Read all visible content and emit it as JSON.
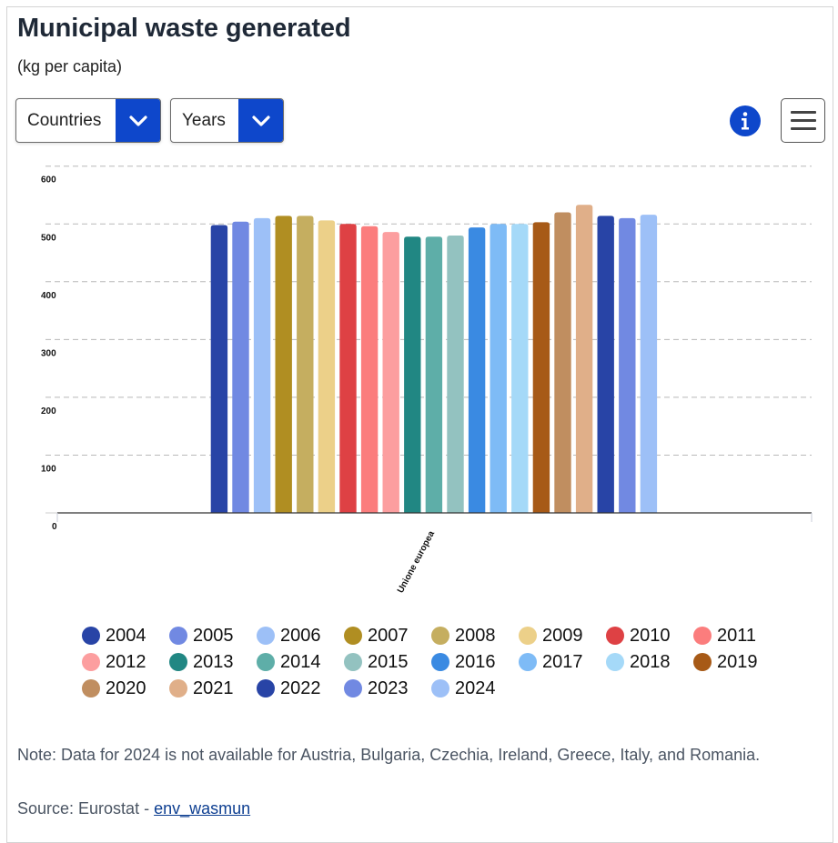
{
  "header": {
    "title": "Municipal waste generated",
    "subtitle": "(kg per capita)"
  },
  "controls": {
    "countries_label": "Countries",
    "years_label": "Years",
    "info_icon": "info-circle-icon",
    "menu_icon": "hamburger-menu-icon",
    "accent_color": "#0e47cb"
  },
  "chart_data": {
    "type": "bar",
    "title": "Municipal waste generated",
    "subtitle": "(kg per capita)",
    "xlabel": "",
    "ylabel": "",
    "categories": [
      "Unione europea"
    ],
    "ylim": [
      0,
      600
    ],
    "yticks": [
      0,
      100,
      200,
      300,
      400,
      500,
      600
    ],
    "ytick_labels": [
      "0",
      "100",
      "200",
      "300",
      "400",
      "500",
      "600"
    ],
    "grid": true,
    "legend_position": "bottom",
    "series": [
      {
        "name": "2004",
        "color": "#2844a6",
        "values": [
          498
        ]
      },
      {
        "name": "2005",
        "color": "#7189e2",
        "values": [
          504
        ]
      },
      {
        "name": "2006",
        "color": "#9dc0f7",
        "values": [
          510
        ]
      },
      {
        "name": "2007",
        "color": "#b08e22",
        "values": [
          514
        ]
      },
      {
        "name": "2008",
        "color": "#c5ae60",
        "values": [
          514
        ]
      },
      {
        "name": "2009",
        "color": "#ecd089",
        "values": [
          506
        ]
      },
      {
        "name": "2010",
        "color": "#de4144",
        "values": [
          500
        ]
      },
      {
        "name": "2011",
        "color": "#fb7d7d",
        "values": [
          496
        ]
      },
      {
        "name": "2012",
        "color": "#fc9e9f",
        "values": [
          486
        ]
      },
      {
        "name": "2013",
        "color": "#218783",
        "values": [
          478
        ]
      },
      {
        "name": "2014",
        "color": "#5eaea8",
        "values": [
          478
        ]
      },
      {
        "name": "2015",
        "color": "#93c2c0",
        "values": [
          480
        ]
      },
      {
        "name": "2016",
        "color": "#3a8ae2",
        "values": [
          494
        ]
      },
      {
        "name": "2017",
        "color": "#7ebbf6",
        "values": [
          500
        ]
      },
      {
        "name": "2018",
        "color": "#a5d9f8",
        "values": [
          500
        ]
      },
      {
        "name": "2019",
        "color": "#a75a17",
        "values": [
          503
        ]
      },
      {
        "name": "2020",
        "color": "#c08e60",
        "values": [
          520
        ]
      },
      {
        "name": "2021",
        "color": "#e0af89",
        "values": [
          533
        ]
      },
      {
        "name": "2022",
        "color": "#2844a6",
        "values": [
          514
        ]
      },
      {
        "name": "2023",
        "color": "#7189e2",
        "values": [
          510
        ]
      },
      {
        "name": "2024",
        "color": "#9dc0f7",
        "values": [
          516
        ]
      }
    ]
  },
  "footer": {
    "note": "Note: Data for 2024 is not available for Austria, Bulgaria, Czechia, Ireland, Greece, Italy, and Romania.",
    "source_prefix": "Source: Eurostat - ",
    "source_link": "env_wasmun"
  }
}
